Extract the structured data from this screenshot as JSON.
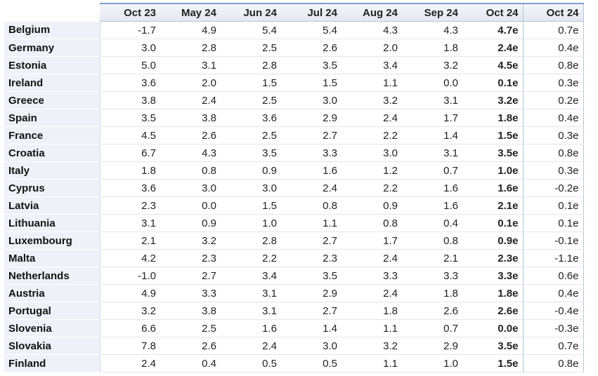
{
  "table": {
    "headers": [
      "Oct 23",
      "May 24",
      "Jun 24",
      "Jul 24",
      "Aug 24",
      "Sep 24",
      "Oct 24",
      "Oct 24"
    ],
    "rows": [
      {
        "label": "Belgium",
        "values": [
          "-1.7",
          "4.9",
          "5.4",
          "5.4",
          "4.3",
          "4.3",
          "4.7e",
          "0.7e"
        ]
      },
      {
        "label": "Germany",
        "values": [
          "3.0",
          "2.8",
          "2.5",
          "2.6",
          "2.0",
          "1.8",
          "2.4e",
          "0.4e"
        ]
      },
      {
        "label": "Estonia",
        "values": [
          "5.0",
          "3.1",
          "2.8",
          "3.5",
          "3.4",
          "3.2",
          "4.5e",
          "0.8e"
        ]
      },
      {
        "label": "Ireland",
        "values": [
          "3.6",
          "2.0",
          "1.5",
          "1.5",
          "1.1",
          "0.0",
          "0.1e",
          "0.3e"
        ]
      },
      {
        "label": "Greece",
        "values": [
          "3.8",
          "2.4",
          "2.5",
          "3.0",
          "3.2",
          "3.1",
          "3.2e",
          "0.2e"
        ]
      },
      {
        "label": "Spain",
        "values": [
          "3.5",
          "3.8",
          "3.6",
          "2.9",
          "2.4",
          "1.7",
          "1.8e",
          "0.4e"
        ]
      },
      {
        "label": "France",
        "values": [
          "4.5",
          "2.6",
          "2.5",
          "2.7",
          "2.2",
          "1.4",
          "1.5e",
          "0.3e"
        ]
      },
      {
        "label": "Croatia",
        "values": [
          "6.7",
          "4.3",
          "3.5",
          "3.3",
          "3.0",
          "3.1",
          "3.5e",
          "0.8e"
        ]
      },
      {
        "label": "Italy",
        "values": [
          "1.8",
          "0.8",
          "0.9",
          "1.6",
          "1.2",
          "0.7",
          "1.0e",
          "0.3e"
        ]
      },
      {
        "label": "Cyprus",
        "values": [
          "3.6",
          "3.0",
          "3.0",
          "2.4",
          "2.2",
          "1.6",
          "1.6e",
          "-0.2e"
        ]
      },
      {
        "label": "Latvia",
        "values": [
          "2.3",
          "0.0",
          "1.5",
          "0.8",
          "0.9",
          "1.6",
          "2.1e",
          "0.1e"
        ]
      },
      {
        "label": "Lithuania",
        "values": [
          "3.1",
          "0.9",
          "1.0",
          "1.1",
          "0.8",
          "0.4",
          "0.1e",
          "0.1e"
        ]
      },
      {
        "label": "Luxembourg",
        "values": [
          "2.1",
          "3.2",
          "2.8",
          "2.7",
          "1.7",
          "0.8",
          "0.9e",
          "-0.1e"
        ]
      },
      {
        "label": "Malta",
        "values": [
          "4.2",
          "2.3",
          "2.2",
          "2.3",
          "2.4",
          "2.1",
          "2.3e",
          "-1.1e"
        ]
      },
      {
        "label": "Netherlands",
        "values": [
          "-1.0",
          "2.7",
          "3.4",
          "3.5",
          "3.3",
          "3.3",
          "3.3e",
          "0.6e"
        ]
      },
      {
        "label": "Austria",
        "values": [
          "4.9",
          "3.3",
          "3.1",
          "2.9",
          "2.4",
          "1.8",
          "1.8e",
          "0.4e"
        ]
      },
      {
        "label": "Portugal",
        "values": [
          "3.2",
          "3.8",
          "3.1",
          "2.7",
          "1.8",
          "2.6",
          "2.6e",
          "-0.4e"
        ]
      },
      {
        "label": "Slovenia",
        "values": [
          "6.6",
          "2.5",
          "1.6",
          "1.4",
          "1.1",
          "0.7",
          "0.0e",
          "-0.3e"
        ]
      },
      {
        "label": "Slovakia",
        "values": [
          "7.8",
          "2.6",
          "2.4",
          "3.0",
          "3.2",
          "2.9",
          "3.5e",
          "0.7e"
        ]
      },
      {
        "label": "Finland",
        "values": [
          "2.4",
          "0.4",
          "0.5",
          "0.5",
          "1.1",
          "1.0",
          "1.5e",
          "0.8e"
        ]
      }
    ]
  }
}
